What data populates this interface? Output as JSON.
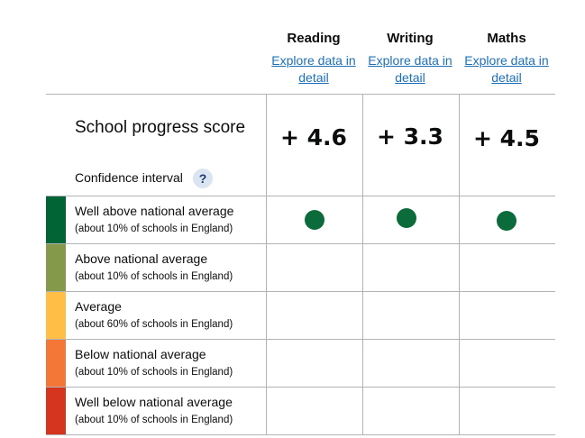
{
  "subjects": [
    {
      "name": "Reading",
      "link": "Explore data in detail",
      "score": "+ 4.6",
      "band": 0
    },
    {
      "name": "Writing",
      "link": "Explore data in detail",
      "score": "+ 3.3",
      "band": 0
    },
    {
      "name": "Maths",
      "link": "Explore data in detail",
      "score": "+ 4.5",
      "band": 0
    }
  ],
  "score_row": {
    "title": "School progress score",
    "confidence_label": "Confidence interval",
    "help_icon": "?"
  },
  "bands": [
    {
      "title": "Well above national average",
      "subtitle": "(about 10% of schools in England)",
      "color": "#006435"
    },
    {
      "title": "Above national average",
      "subtitle": "(about 10% of schools in England)",
      "color": "#85994b"
    },
    {
      "title": "Average",
      "subtitle": "(about 60% of schools in England)",
      "color": "#ffbf47"
    },
    {
      "title": "Below national average",
      "subtitle": "(about 10% of schools in England)",
      "color": "#f47738"
    },
    {
      "title": "Well below national average",
      "subtitle": "(about 10% of schools in England)",
      "color": "#d4351c"
    }
  ],
  "colors": {
    "link": "#1d70b8",
    "indicator_dot": "#0b6b3a",
    "grid": "#b1b4b6"
  }
}
